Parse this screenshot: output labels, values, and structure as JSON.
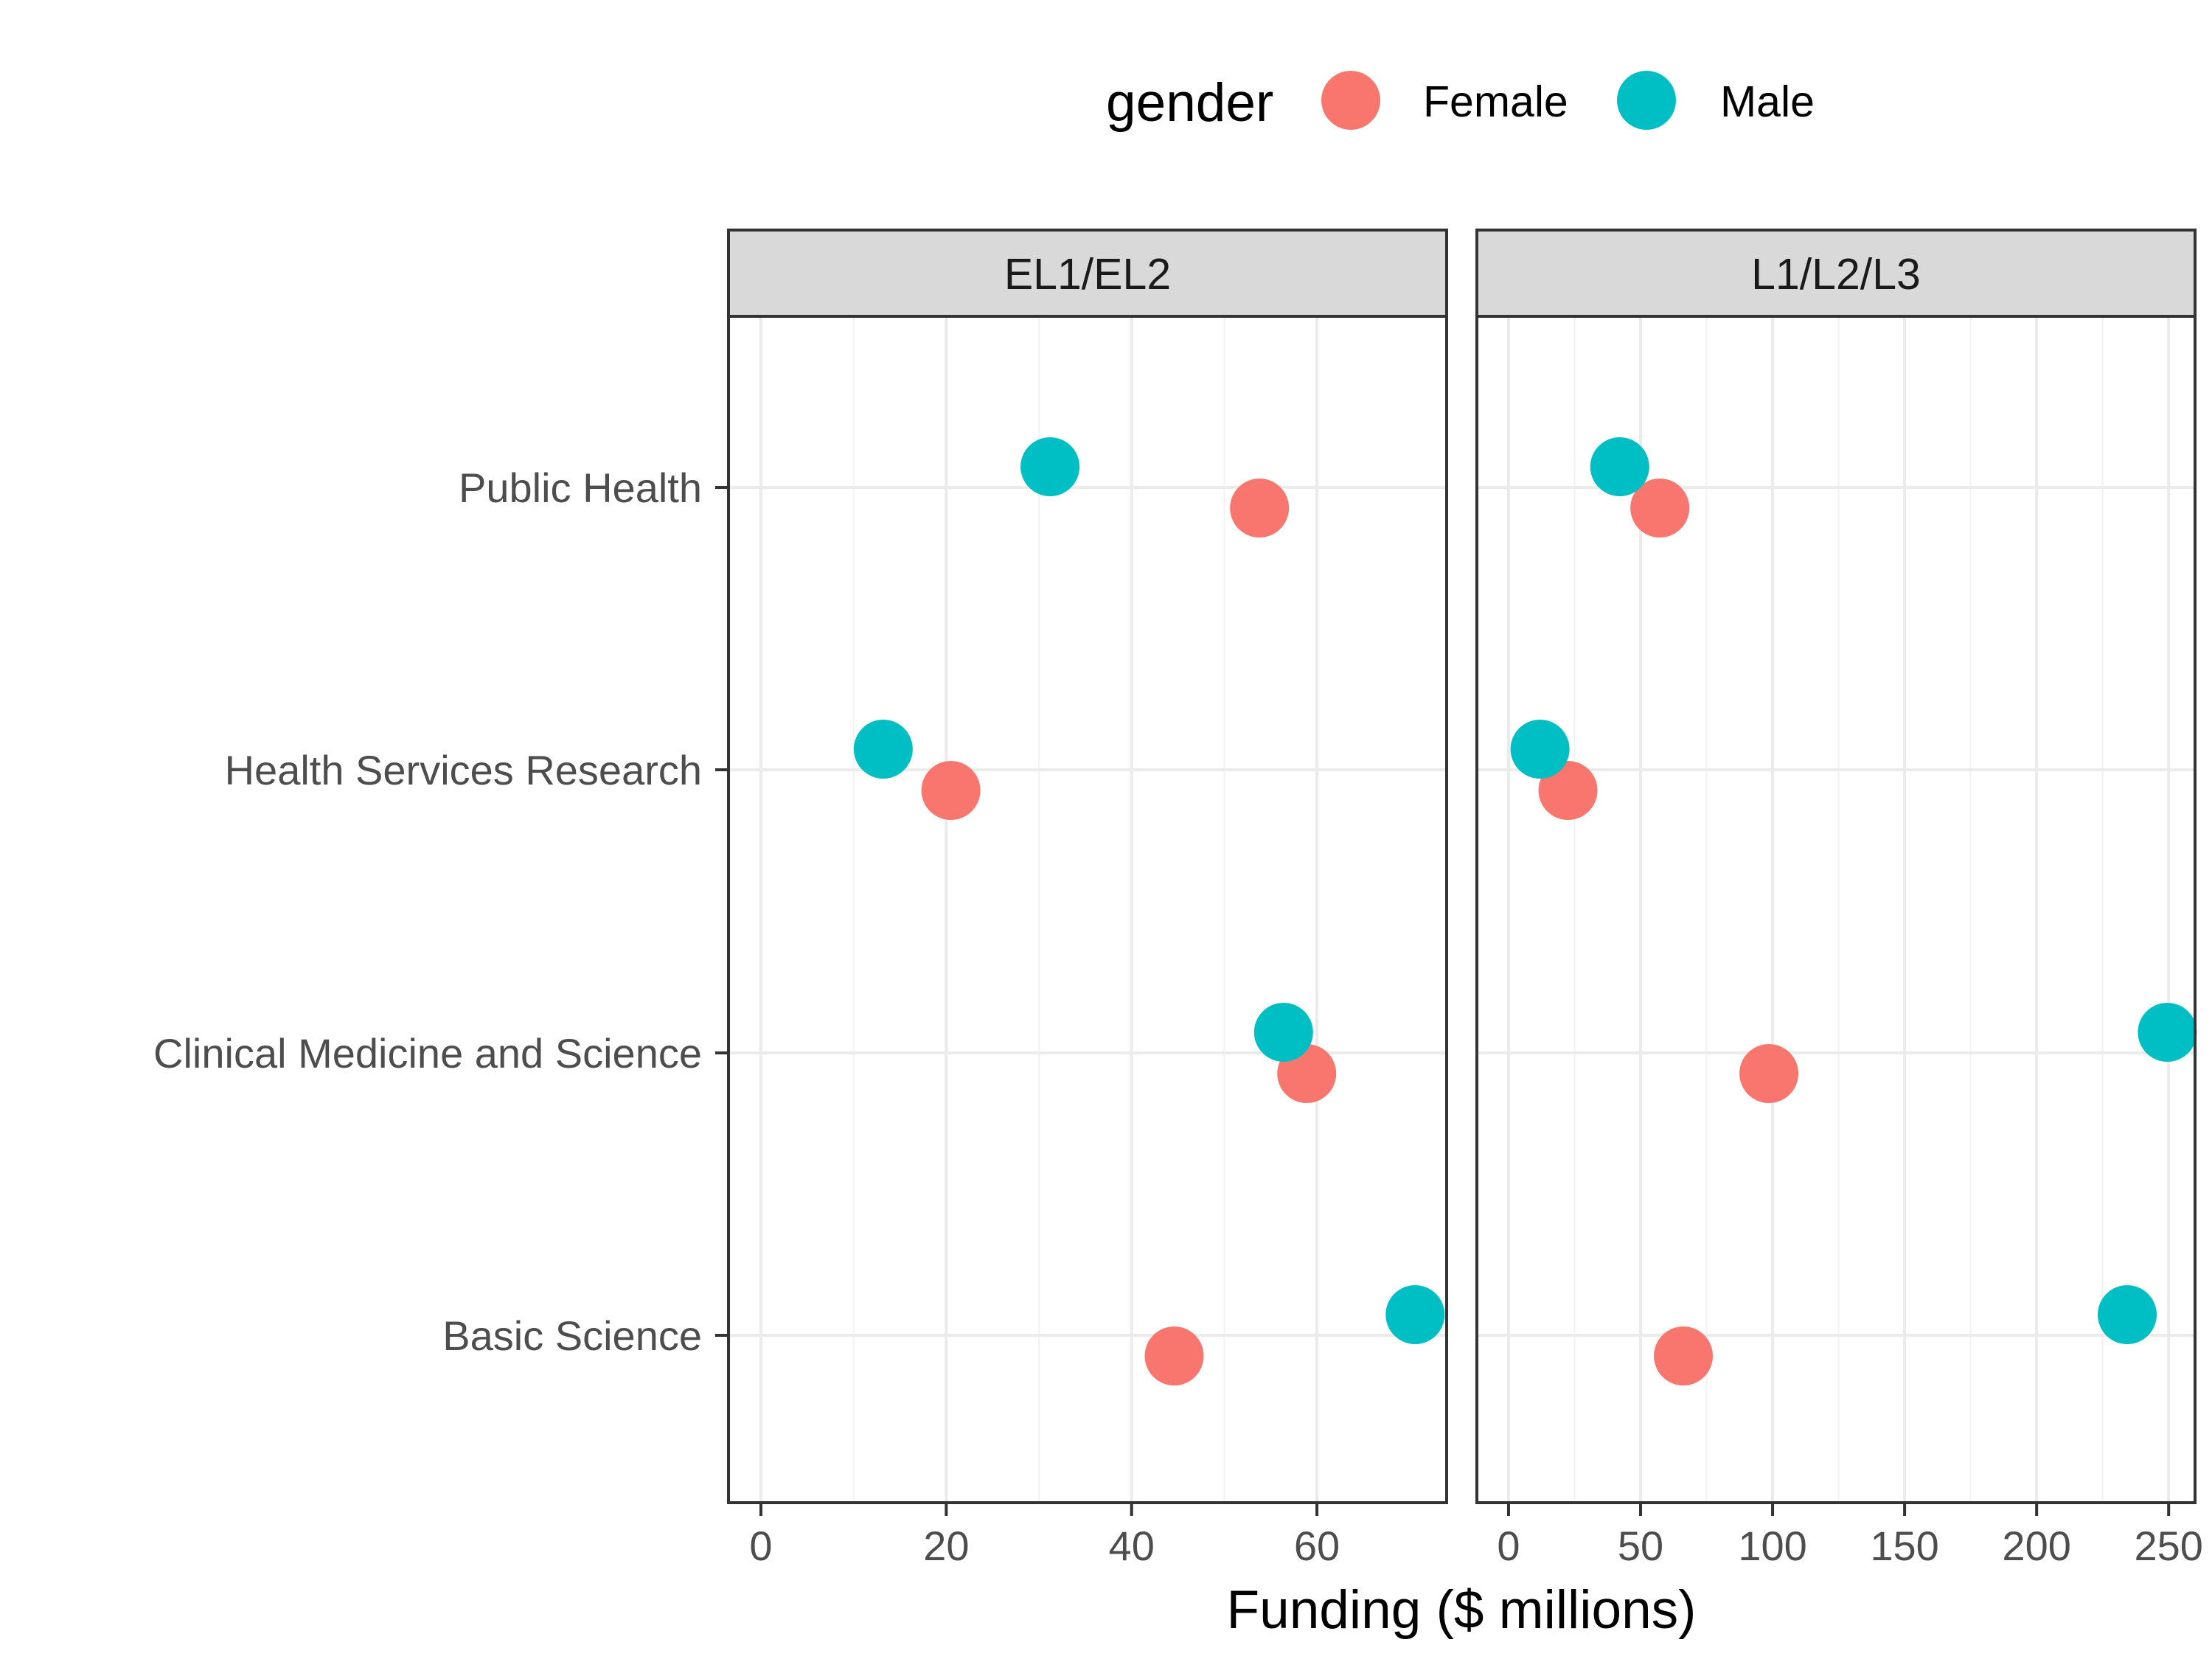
{
  "chart_data": {
    "type": "scatter",
    "xlabel": "Funding ($ millions)",
    "ylabel": "",
    "legend": {
      "title": "gender",
      "placement": "top",
      "entries": [
        {
          "name": "Female",
          "color": "#F8766D"
        },
        {
          "name": "Male",
          "color": "#00BFC4"
        }
      ]
    },
    "categories": [
      "Public Health",
      "Health Services Research",
      "Clinical Medicine and Science",
      "Basic Science"
    ],
    "grid": true,
    "panels": [
      {
        "label": "EL1/EL2",
        "xlim": [
          -3.5,
          74
        ],
        "xticks": [
          "0",
          "20",
          "40",
          "60"
        ],
        "series": [
          {
            "name": "Female",
            "values": [
              53.8,
              20.5,
              58.9,
              44.6
            ]
          },
          {
            "name": "Male",
            "values": [
              31.2,
              13.2,
              56.4,
              70.6
            ]
          }
        ]
      },
      {
        "label": "L1/L2/L3",
        "xlim": [
          -12,
          260
        ],
        "xticks": [
          "0",
          "50",
          "100",
          "150",
          "200",
          "250"
        ],
        "series": [
          {
            "name": "Female",
            "values": [
              57.3,
              22.5,
              98.6,
              66.2
            ]
          },
          {
            "name": "Male",
            "values": [
              42.1,
              11.9,
              249.5,
              234.3
            ]
          }
        ]
      }
    ]
  }
}
